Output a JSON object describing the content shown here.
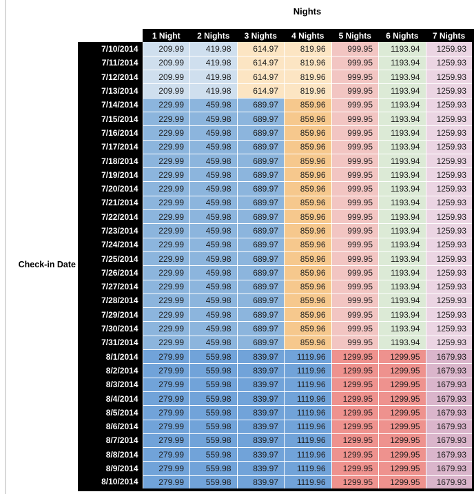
{
  "title": "Nights",
  "axis_label": "Check-in Date",
  "colors": {
    "light_blue": "#cfdfee",
    "light_orange": "#fce5c3",
    "pink": "#f2c5c2",
    "green": "#dcead6",
    "lilac": "#ebd5e3",
    "med_blue": "#8cb5dd",
    "med_orange": "#f6c88d",
    "dark_blue": "#71a3d9",
    "salmon": "#ee928e",
    "mauve": "#dab5cb",
    "header_bg": "#000000",
    "header_text": "#ffffff",
    "cell_text": "#1c1c1c"
  },
  "chart_data": {
    "type": "table",
    "title": "Nights",
    "row_axis_label": "Check-in Date",
    "columns": [
      "1 Night",
      "2 Nights",
      "3 Nights",
      "4 Nights",
      "5 Nights",
      "6 Nights",
      "7 Nights"
    ],
    "sections": {
      "early_july": {
        "values": [
          "209.99",
          "419.98",
          "614.97",
          "819.96",
          "999.95",
          "1193.94",
          "1259.93"
        ],
        "cell_colors": [
          "light_blue",
          "light_blue",
          "light_orange",
          "light_orange",
          "pink",
          "green",
          "lilac"
        ]
      },
      "mid_july": {
        "values": [
          "229.99",
          "459.98",
          "689.97",
          "859.96",
          "999.95",
          "1193.94",
          "1259.93"
        ],
        "cell_colors": [
          "med_blue",
          "med_blue",
          "med_blue",
          "med_orange",
          "pink",
          "green",
          "lilac"
        ]
      },
      "august": {
        "values": [
          "279.99",
          "559.98",
          "839.97",
          "1119.96",
          "1299.95",
          "1299.95",
          "1679.93"
        ],
        "cell_colors": [
          "dark_blue",
          "dark_blue",
          "dark_blue",
          "dark_blue",
          "salmon",
          "salmon",
          "mauve"
        ]
      }
    },
    "rows": [
      {
        "date": "7/10/2014",
        "section": "early_july"
      },
      {
        "date": "7/11/2014",
        "section": "early_july"
      },
      {
        "date": "7/12/2014",
        "section": "early_july"
      },
      {
        "date": "7/13/2014",
        "section": "early_july"
      },
      {
        "date": "7/14/2014",
        "section": "mid_july"
      },
      {
        "date": "7/15/2014",
        "section": "mid_july"
      },
      {
        "date": "7/16/2014",
        "section": "mid_july"
      },
      {
        "date": "7/17/2014",
        "section": "mid_july"
      },
      {
        "date": "7/18/2014",
        "section": "mid_july"
      },
      {
        "date": "7/19/2014",
        "section": "mid_july"
      },
      {
        "date": "7/20/2014",
        "section": "mid_july"
      },
      {
        "date": "7/21/2014",
        "section": "mid_july"
      },
      {
        "date": "7/22/2014",
        "section": "mid_july"
      },
      {
        "date": "7/23/2014",
        "section": "mid_july"
      },
      {
        "date": "7/24/2014",
        "section": "mid_july"
      },
      {
        "date": "7/25/2014",
        "section": "mid_july"
      },
      {
        "date": "7/26/2014",
        "section": "mid_july"
      },
      {
        "date": "7/27/2014",
        "section": "mid_july"
      },
      {
        "date": "7/28/2014",
        "section": "mid_july"
      },
      {
        "date": "7/29/2014",
        "section": "mid_july"
      },
      {
        "date": "7/30/2014",
        "section": "mid_july"
      },
      {
        "date": "7/31/2014",
        "section": "mid_july"
      },
      {
        "date": "8/1/2014",
        "section": "august"
      },
      {
        "date": "8/2/2014",
        "section": "august"
      },
      {
        "date": "8/3/2014",
        "section": "august"
      },
      {
        "date": "8/4/2014",
        "section": "august"
      },
      {
        "date": "8/5/2014",
        "section": "august"
      },
      {
        "date": "8/6/2014",
        "section": "august"
      },
      {
        "date": "8/7/2014",
        "section": "august"
      },
      {
        "date": "8/8/2014",
        "section": "august"
      },
      {
        "date": "8/9/2014",
        "section": "august"
      },
      {
        "date": "8/10/2014",
        "section": "august"
      }
    ]
  }
}
